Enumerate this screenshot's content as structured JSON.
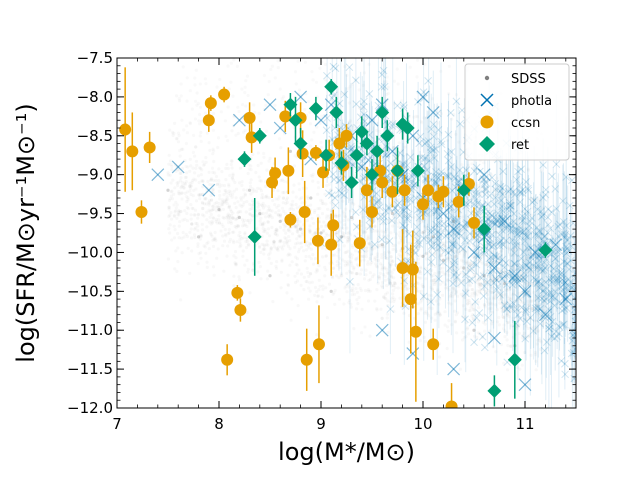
{
  "chart_data": {
    "type": "scatter",
    "title": "",
    "xlabel": "log(M*/M⊙)",
    "ylabel": "log(SFR/M⊙yr⁻¹M⊙⁻¹)",
    "xlim": [
      7,
      11.5
    ],
    "ylim": [
      -12,
      -7.5
    ],
    "xticks": [
      7,
      8,
      9,
      10,
      11
    ],
    "xtick_labels": [
      "7",
      "8",
      "9",
      "10",
      "11"
    ],
    "yticks": [
      -12,
      -11.5,
      -11,
      -10.5,
      -10,
      -9.5,
      -9,
      -8.5,
      -8,
      -7.5
    ],
    "ytick_labels": [
      "−12.0",
      "−11.5",
      "−11.0",
      "−10.5",
      "−10.0",
      "−9.5",
      "−9.0",
      "−8.5",
      "−8.0",
      "−7.5"
    ],
    "legend_position": "top-right",
    "grid": false,
    "series": [
      {
        "name": "SDSS",
        "marker": "dot",
        "color": "#808080",
        "points": [
          [
            8.0,
            -9.45
          ],
          [
            8.2,
            -9.55
          ],
          [
            8.4,
            -9.5
          ],
          [
            8.6,
            -9.6
          ],
          [
            8.8,
            -9.7
          ],
          [
            9.0,
            -9.75
          ],
          [
            9.2,
            -9.8
          ],
          [
            9.4,
            -9.85
          ],
          [
            9.6,
            -9.9
          ],
          [
            9.8,
            -9.95
          ],
          [
            10.0,
            -10.05
          ],
          [
            10.2,
            -10.1
          ],
          [
            10.4,
            -10.2
          ],
          [
            10.6,
            -10.3
          ],
          [
            10.8,
            -10.4
          ],
          [
            8.3,
            -9.2
          ],
          [
            8.9,
            -9.3
          ],
          [
            9.3,
            -9.55
          ],
          [
            9.7,
            -9.5
          ],
          [
            10.1,
            -9.8
          ],
          [
            7.5,
            -9.2
          ],
          [
            7.8,
            -9.8
          ],
          [
            8.5,
            -10.3
          ],
          [
            9.1,
            -10.5
          ],
          [
            9.9,
            -10.7
          ],
          [
            10.5,
            -11.0
          ],
          [
            10.9,
            -11.2
          ],
          [
            8.7,
            -8.7
          ],
          [
            9.5,
            -9.1
          ],
          [
            10.3,
            -9.6
          ]
        ]
      },
      {
        "name": "photla",
        "marker": "x",
        "color": "#0072B2",
        "points": [
          [
            7.4,
            -9.0
          ],
          [
            7.6,
            -8.9
          ],
          [
            7.9,
            -9.2
          ],
          [
            8.2,
            -8.3
          ],
          [
            8.5,
            -8.1
          ],
          [
            8.6,
            -8.4
          ],
          [
            8.8,
            -8.0
          ],
          [
            9.0,
            -8.3
          ],
          [
            9.2,
            -8.6
          ],
          [
            9.3,
            -8.5
          ],
          [
            9.4,
            -8.9
          ],
          [
            9.5,
            -8.3
          ],
          [
            9.6,
            -8.1
          ],
          [
            9.7,
            -8.7
          ],
          [
            9.8,
            -9.0
          ],
          [
            9.9,
            -8.5
          ],
          [
            10.0,
            -9.3
          ],
          [
            10.1,
            -8.2
          ],
          [
            10.2,
            -9.5
          ],
          [
            10.3,
            -9.7
          ],
          [
            10.4,
            -9.2
          ],
          [
            10.5,
            -10.0
          ],
          [
            10.6,
            -9.8
          ],
          [
            10.7,
            -10.2
          ],
          [
            10.8,
            -9.6
          ],
          [
            10.9,
            -10.3
          ],
          [
            11.0,
            -10.5
          ],
          [
            11.1,
            -10.0
          ],
          [
            11.2,
            -10.8
          ],
          [
            11.3,
            -9.9
          ],
          [
            9.6,
            -11.0
          ],
          [
            9.9,
            -11.3
          ],
          [
            10.3,
            -11.5
          ],
          [
            10.7,
            -11.1
          ],
          [
            11.0,
            -11.7
          ],
          [
            8.9,
            -8.8
          ],
          [
            9.1,
            -8.1
          ],
          [
            10.0,
            -8.0
          ],
          [
            10.6,
            -9.0
          ],
          [
            11.4,
            -10.6
          ]
        ]
      },
      {
        "name": "ccsn",
        "marker": "circle",
        "color": "#E69F00",
        "points": [
          {
            "x": 7.08,
            "y": -8.42,
            "ye": 0.8
          },
          {
            "x": 7.15,
            "y": -8.7,
            "ye": 0.5
          },
          {
            "x": 7.24,
            "y": -9.48,
            "ye": 0.15
          },
          {
            "x": 7.32,
            "y": -8.65,
            "ye": 0.2
          },
          {
            "x": 7.9,
            "y": -8.3,
            "ye": 0.15
          },
          {
            "x": 7.92,
            "y": -8.08,
            "ye": 0.1
          },
          {
            "x": 8.05,
            "y": -7.97,
            "ye": 0.1
          },
          {
            "x": 8.08,
            "y": -11.38,
            "ye": 0.2
          },
          {
            "x": 8.18,
            "y": -10.52,
            "ye": 0.1
          },
          {
            "x": 8.21,
            "y": -10.74,
            "ye": 0.15
          },
          {
            "x": 8.3,
            "y": -8.27,
            "ye": 0.2
          },
          {
            "x": 8.32,
            "y": -8.52,
            "ye": 0.2
          },
          {
            "x": 8.52,
            "y": -9.1,
            "ye": 0.2
          },
          {
            "x": 8.55,
            "y": -8.98,
            "ye": 0.2
          },
          {
            "x": 8.65,
            "y": -8.25,
            "ye": 0.2
          },
          {
            "x": 8.68,
            "y": -8.95,
            "ye": 0.3
          },
          {
            "x": 8.7,
            "y": -9.58,
            "ye": 0.1
          },
          {
            "x": 8.8,
            "y": -8.27,
            "ye": 0.2
          },
          {
            "x": 8.82,
            "y": -8.73,
            "ye": 0.3
          },
          {
            "x": 8.84,
            "y": -9.48,
            "ye": 0.4
          },
          {
            "x": 8.86,
            "y": -11.38,
            "ye": 0.4
          },
          {
            "x": 8.95,
            "y": -8.72,
            "ye": 0.1
          },
          {
            "x": 8.97,
            "y": -9.85,
            "ye": 0.3
          },
          {
            "x": 8.98,
            "y": -11.18,
            "ye": 0.5
          },
          {
            "x": 9.02,
            "y": -8.97,
            "ye": 0.2
          },
          {
            "x": 9.08,
            "y": -8.75,
            "ye": 0.2
          },
          {
            "x": 9.1,
            "y": -9.9,
            "ye": 0.4
          },
          {
            "x": 9.12,
            "y": -9.65,
            "ye": 0.2
          },
          {
            "x": 9.18,
            "y": -8.6,
            "ye": 0.2
          },
          {
            "x": 9.22,
            "y": -8.88,
            "ye": 0.2
          },
          {
            "x": 9.25,
            "y": -8.5,
            "ye": 0.15
          },
          {
            "x": 9.38,
            "y": -9.88,
            "ye": 0.3
          },
          {
            "x": 9.45,
            "y": -9.2,
            "ye": 0.3
          },
          {
            "x": 9.5,
            "y": -9.48,
            "ye": 0.2
          },
          {
            "x": 9.58,
            "y": -8.95,
            "ye": 0.2
          },
          {
            "x": 9.6,
            "y": -9.1,
            "ye": 0.2
          },
          {
            "x": 9.7,
            "y": -9.22,
            "ye": 0.2
          },
          {
            "x": 9.75,
            "y": -8.95,
            "ye": 0.2
          },
          {
            "x": 9.8,
            "y": -10.2,
            "ye": 0.5
          },
          {
            "x": 9.82,
            "y": -9.2,
            "ye": 0.2
          },
          {
            "x": 9.88,
            "y": -10.6,
            "ye": 0.7
          },
          {
            "x": 9.9,
            "y": -10.22,
            "ye": 0.5
          },
          {
            "x": 9.93,
            "y": -11.02,
            "ye": 0.9
          },
          {
            "x": 10.0,
            "y": -9.38,
            "ye": 0.2
          },
          {
            "x": 10.05,
            "y": -9.2,
            "ye": 0.2
          },
          {
            "x": 10.1,
            "y": -11.18,
            "ye": 0.2
          },
          {
            "x": 10.15,
            "y": -9.28,
            "ye": 0.15
          },
          {
            "x": 10.2,
            "y": -9.22,
            "ye": 0.2
          },
          {
            "x": 10.28,
            "y": -11.98,
            "ye": 0.3
          },
          {
            "x": 10.35,
            "y": -9.35,
            "ye": 0.2
          },
          {
            "x": 10.45,
            "y": -9.12,
            "ye": 0.15
          },
          {
            "x": 10.5,
            "y": -9.62,
            "ye": 0.2
          }
        ]
      },
      {
        "name": "ret",
        "marker": "diamond",
        "color": "#009E73",
        "points": [
          {
            "x": 8.25,
            "y": -8.8,
            "ye": 0.1
          },
          {
            "x": 8.35,
            "y": -9.8,
            "ye": 0.5
          },
          {
            "x": 8.4,
            "y": -8.5,
            "ye": 0.1
          },
          {
            "x": 8.7,
            "y": -8.1,
            "ye": 0.15
          },
          {
            "x": 8.75,
            "y": -8.3,
            "ye": 0.3
          },
          {
            "x": 8.8,
            "y": -8.6,
            "ye": 0.2
          },
          {
            "x": 8.95,
            "y": -8.15,
            "ye": 0.15
          },
          {
            "x": 9.05,
            "y": -8.75,
            "ye": 0.2
          },
          {
            "x": 9.1,
            "y": -7.87,
            "ye": 0.1
          },
          {
            "x": 9.15,
            "y": -8.2,
            "ye": 0.2
          },
          {
            "x": 9.2,
            "y": -8.85,
            "ye": 0.15
          },
          {
            "x": 9.3,
            "y": -9.1,
            "ye": 0.2
          },
          {
            "x": 9.35,
            "y": -8.75,
            "ye": 0.3
          },
          {
            "x": 9.4,
            "y": -8.45,
            "ye": 0.2
          },
          {
            "x": 9.45,
            "y": -8.6,
            "ye": 0.15
          },
          {
            "x": 9.5,
            "y": -9.0,
            "ye": 0.2
          },
          {
            "x": 9.55,
            "y": -8.7,
            "ye": 0.2
          },
          {
            "x": 9.6,
            "y": -8.2,
            "ye": 0.2
          },
          {
            "x": 9.65,
            "y": -8.5,
            "ye": 0.2
          },
          {
            "x": 9.75,
            "y": -8.95,
            "ye": 0.3
          },
          {
            "x": 9.8,
            "y": -8.35,
            "ye": 0.2
          },
          {
            "x": 9.85,
            "y": -8.4,
            "ye": 0.2
          },
          {
            "x": 9.95,
            "y": -8.95,
            "ye": 0.2
          },
          {
            "x": 10.4,
            "y": -9.2,
            "ye": 0.2
          },
          {
            "x": 10.6,
            "y": -9.7,
            "ye": 0.3
          },
          {
            "x": 10.9,
            "y": -11.38,
            "ye": 0.5
          },
          {
            "x": 11.2,
            "y": -9.97,
            "ye": 0.1
          },
          {
            "x": 10.7,
            "y": -11.78,
            "ye": 0.2
          }
        ]
      }
    ]
  }
}
